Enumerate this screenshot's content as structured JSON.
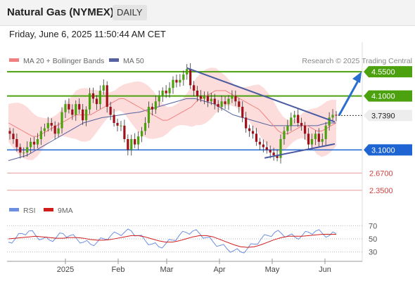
{
  "header": {
    "title": "Natural Gas (NYMEX)",
    "period": "DAILY"
  },
  "date_line": "Friday, June 6, 2025 11:50:44 AM CET",
  "legend": {
    "ma20": "MA 20 + Bollinger Bands",
    "ma50": "MA 50",
    "credit": "Research © 2025 Trading Central"
  },
  "rsi_legend": {
    "rsi": "RSI",
    "ma": "9MA"
  },
  "colors": {
    "green_level": "#4ca10e",
    "blue_level": "#1e64d2",
    "red_level": "#e9a3a3",
    "bollinger": "#fbd2d0",
    "ma20": "#f08080",
    "ma50": "#5561a0",
    "up": "#4ca10e",
    "down": "#a0101a",
    "trendline": "#4a5aa0",
    "rsi": "#6b8fe0",
    "rsi_ma": "#d11c1c"
  },
  "chart_data": [
    {
      "type": "candlestick",
      "title": "Natural Gas (NYMEX)",
      "x_tick_labels": [
        "2025",
        "Feb",
        "Mar",
        "Apr",
        "May",
        "Jun"
      ],
      "ylim": [
        2.1,
        5.1
      ],
      "last_price": "3.7390",
      "levels": [
        {
          "value": 4.55,
          "label": "4.5500",
          "kind": "resistance"
        },
        {
          "value": 4.1,
          "label": "4.1000",
          "kind": "resistance"
        },
        {
          "value": 3.1,
          "label": "3.1000",
          "kind": "pivot"
        },
        {
          "value": 2.67,
          "label": "2.6700",
          "kind": "support"
        },
        {
          "value": 2.35,
          "label": "2.3500",
          "kind": "support"
        }
      ],
      "close_approx": [
        3.4,
        3.3,
        3.15,
        3.05,
        3.05,
        3.15,
        3.25,
        3.2,
        3.3,
        3.45,
        3.5,
        3.6,
        3.55,
        3.4,
        3.5,
        3.8,
        3.95,
        3.85,
        3.75,
        3.95,
        3.85,
        3.65,
        3.85,
        4.15,
        4.05,
        3.95,
        4.2,
        4.3,
        3.9,
        3.75,
        3.6,
        3.55,
        3.55,
        3.3,
        3.1,
        3.3,
        3.2,
        3.35,
        3.45,
        3.6,
        3.9,
        3.85,
        4.0,
        4.1,
        4.2,
        4.15,
        4.25,
        4.4,
        4.35,
        4.4,
        4.5,
        4.6,
        4.3,
        4.2,
        4.1,
        4.05,
        4.1,
        4.0,
        4.05,
        3.95,
        3.9,
        4.0,
        3.95,
        4.05,
        4.1,
        4.0,
        3.9,
        3.7,
        3.5,
        3.45,
        3.4,
        3.25,
        3.2,
        3.15,
        3.1,
        3.05,
        3.0,
        2.95,
        3.3,
        3.45,
        3.55,
        3.7,
        3.75,
        3.6,
        3.55,
        3.4,
        3.2,
        3.3,
        3.4,
        3.25,
        3.3,
        3.55,
        3.7,
        3.75,
        3.74
      ],
      "ma20_approx": [
        3.6,
        3.55,
        3.5,
        3.45,
        3.4,
        3.35,
        3.35,
        3.4,
        3.45,
        3.5,
        3.55,
        3.6,
        3.65,
        3.7,
        3.75,
        3.75,
        3.75,
        3.75,
        3.8,
        3.85,
        3.9,
        3.95,
        4.0,
        4.05,
        4.05,
        4.0,
        3.95,
        3.9,
        3.85,
        3.8,
        3.75,
        3.7,
        3.65,
        3.65,
        3.7,
        3.75,
        3.8,
        3.85,
        3.9,
        4.0,
        4.05,
        4.1,
        4.15,
        4.2,
        4.2,
        4.2,
        4.15,
        4.1,
        4.05,
        4.0,
        3.95,
        3.9,
        3.85,
        3.75,
        3.65,
        3.55,
        3.45,
        3.4,
        3.4,
        3.45,
        3.5,
        3.55,
        3.55,
        3.5,
        3.45,
        3.45,
        3.5,
        3.55,
        3.6
      ],
      "ma50_approx": [
        2.9,
        2.95,
        3.0,
        3.1,
        3.2,
        3.3,
        3.4,
        3.5,
        3.6,
        3.65,
        3.7,
        3.72,
        3.75,
        3.78,
        3.8,
        3.85,
        3.9,
        3.95,
        4.0,
        4.05,
        4.05,
        4.0,
        3.95,
        3.85,
        3.75,
        3.7,
        3.65,
        3.6,
        3.55,
        3.55,
        3.55,
        3.55,
        3.55,
        3.55,
        3.6,
        3.6
      ],
      "trendlines": "descending resistance from early March high; ascending support from mid-April low; projected arrow up toward 4.5500"
    },
    {
      "type": "line",
      "title": "RSI",
      "series": [
        {
          "name": "RSI"
        },
        {
          "name": "9MA"
        }
      ],
      "ylim": [
        20,
        80
      ],
      "y_tick_labels": [
        "70",
        "50",
        "30"
      ],
      "rsi_approx": [
        45,
        50,
        58,
        62,
        55,
        50,
        48,
        52,
        58,
        55,
        50,
        45,
        42,
        45,
        50,
        55,
        58,
        60,
        62,
        55,
        48,
        42,
        38,
        42,
        48,
        55,
        60,
        62,
        58,
        52,
        45,
        40,
        35,
        32,
        30,
        35,
        42,
        50,
        55,
        60,
        58,
        55,
        52,
        55,
        60,
        62,
        58,
        55,
        58
      ],
      "ma_approx": [
        50,
        51,
        52,
        53,
        54,
        53,
        52,
        51,
        51,
        52,
        52,
        51,
        49,
        48,
        48,
        49,
        51,
        53,
        55,
        55,
        53,
        50,
        47,
        45,
        45,
        47,
        50,
        53,
        55,
        55,
        53,
        49,
        45,
        41,
        38,
        37,
        38,
        41,
        45,
        49,
        52,
        54,
        54,
        54,
        55,
        56,
        57,
        57,
        57
      ]
    }
  ]
}
